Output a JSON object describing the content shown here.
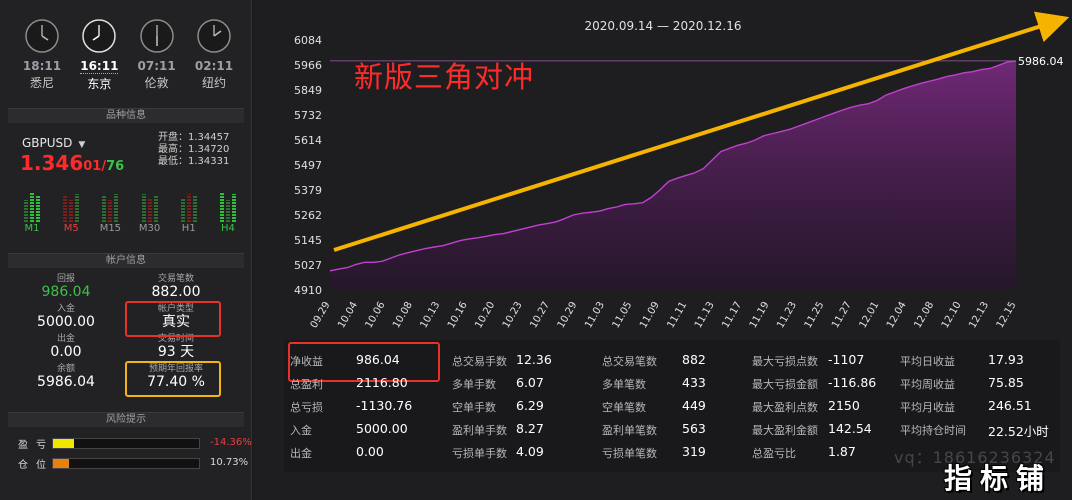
{
  "clocks": [
    {
      "time": "18:11",
      "city": "悉尼"
    },
    {
      "time": "16:11",
      "city": "东京"
    },
    {
      "time": "07:11",
      "city": "伦敦"
    },
    {
      "time": "02:11",
      "city": "纽约"
    }
  ],
  "sections": {
    "instrument": "品种信息",
    "account": "帐户信息",
    "risk": "风险提示"
  },
  "instrument": {
    "symbol": "GBPUSD",
    "price_big": "1.346",
    "price_small": "01",
    "price_pips": "76",
    "open": "开盘：1.34457",
    "high": "最高：1.34720",
    "low": "最低：1.34331",
    "timeframes": [
      {
        "label": "M1",
        "color": "green"
      },
      {
        "label": "M5",
        "color": "red"
      },
      {
        "label": "M15",
        "color": "gray"
      },
      {
        "label": "M30",
        "color": "gray"
      },
      {
        "label": "H1",
        "color": "gray"
      },
      {
        "label": "H4",
        "color": "green"
      }
    ]
  },
  "account": {
    "profit_label": "回报",
    "profit_value": "986.04",
    "trades_label": "交易笔数",
    "trades_value": "882.00",
    "deposit_label": "入金",
    "deposit_value": "5000.00",
    "type_label": "帐户类型",
    "type_value": "真实",
    "withdraw_label": "出金",
    "withdraw_value": "0.00",
    "time_label": "交易时间",
    "time_value": "93 天",
    "balance_label": "余额",
    "balance_value": "5986.04",
    "annual_label": "预期年回报率",
    "annual_value": "77.40 %"
  },
  "risk": [
    {
      "label": "盈亏",
      "value": "-14.36%",
      "fill": 0.1436,
      "color": "#f2e600",
      "value_color": "#e24040"
    },
    {
      "label": "仓位",
      "value": "10.73%",
      "fill": 0.1073,
      "color": "#e8820c",
      "value_color": "#d8d8d8"
    }
  ],
  "chart": {
    "date_range": "2020.09.14 — 2020.12.16",
    "annotation": "新版三角对冲",
    "last_value_label": "5986.04",
    "colors": {
      "line": "#c040d0",
      "fill_top": "#7a2a80",
      "arrow": "#f5b400"
    }
  },
  "chart_data": {
    "type": "area",
    "yticks": [
      "6084",
      "5966",
      "5849",
      "5732",
      "5614",
      "5497",
      "5379",
      "5262",
      "5145",
      "5027",
      "4910"
    ],
    "ylim": [
      4910,
      6084
    ],
    "xticks": [
      "09.29",
      "10.04",
      "10.06",
      "10.08",
      "10.13",
      "10.16",
      "10.20",
      "10.23",
      "10.27",
      "10.29",
      "11.03",
      "11.05",
      "11.09",
      "11.11",
      "11.13",
      "11.17",
      "11.19",
      "11.23",
      "11.25",
      "11.27",
      "12.01",
      "12.04",
      "12.08",
      "12.10",
      "12.13",
      "12.15"
    ],
    "values": [
      5000,
      5008,
      5015,
      5030,
      5040,
      5040,
      5045,
      5060,
      5075,
      5085,
      5095,
      5105,
      5112,
      5118,
      5130,
      5142,
      5150,
      5155,
      5162,
      5170,
      5175,
      5185,
      5195,
      5205,
      5215,
      5222,
      5230,
      5245,
      5262,
      5270,
      5275,
      5280,
      5292,
      5300,
      5312,
      5315,
      5320,
      5345,
      5380,
      5420,
      5435,
      5448,
      5460,
      5480,
      5520,
      5560,
      5575,
      5590,
      5600,
      5615,
      5635,
      5645,
      5655,
      5665,
      5680,
      5695,
      5710,
      5725,
      5740,
      5755,
      5768,
      5778,
      5785,
      5800,
      5825,
      5840,
      5855,
      5868,
      5880,
      5890,
      5900,
      5912,
      5920,
      5930,
      5935,
      5945,
      5950,
      5965,
      5980,
      5986.04
    ],
    "last_value": 5986.04,
    "grid": false
  },
  "stats": [
    [
      {
        "k": "净收益",
        "v": "986.04"
      },
      {
        "k": "总盈利",
        "v": "2116.80"
      },
      {
        "k": "总亏损",
        "v": "-1130.76"
      },
      {
        "k": "入金",
        "v": "5000.00"
      },
      {
        "k": "出金",
        "v": "0.00"
      }
    ],
    [
      {
        "k": "总交易手数",
        "v": "12.36"
      },
      {
        "k": "多单手数",
        "v": "6.07"
      },
      {
        "k": "空单手数",
        "v": "6.29"
      },
      {
        "k": "盈利单手数",
        "v": "8.27"
      },
      {
        "k": "亏损单手数",
        "v": "4.09"
      }
    ],
    [
      {
        "k": "总交易笔数",
        "v": "882"
      },
      {
        "k": "多单笔数",
        "v": "433"
      },
      {
        "k": "空单笔数",
        "v": "449"
      },
      {
        "k": "盈利单笔数",
        "v": "563"
      },
      {
        "k": "亏损单笔数",
        "v": "319"
      }
    ],
    [
      {
        "k": "最大亏损点数",
        "v": "-1107"
      },
      {
        "k": "最大亏损金额",
        "v": "-116.86"
      },
      {
        "k": "最大盈利点数",
        "v": "2150"
      },
      {
        "k": "最大盈利金额",
        "v": "142.54"
      },
      {
        "k": "总盈亏比",
        "v": "1.87"
      }
    ],
    [
      {
        "k": "平均日收益",
        "v": "17.93"
      },
      {
        "k": "平均周收益",
        "v": "75.85"
      },
      {
        "k": "平均月收益",
        "v": "246.51"
      },
      {
        "k": "平均持仓时间",
        "v": "22.52小时"
      }
    ]
  ],
  "watermark": "vq：18616236324",
  "logo": "指标铺"
}
